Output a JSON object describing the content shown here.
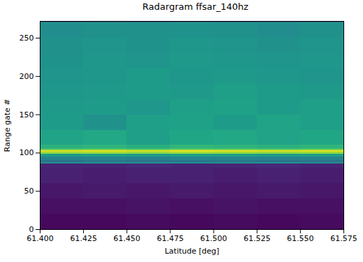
{
  "chart_data": {
    "type": "heatmap",
    "title": "Radargram ffsar_140hz",
    "x_label": "Latitude [deg]",
    "y_label": "Range gate #",
    "xlim": [
      61.4,
      61.575
    ],
    "ylim": [
      0,
      272
    ],
    "xticks": [
      {
        "value": 61.4,
        "label": "61.400"
      },
      {
        "value": 61.425,
        "label": "61.425"
      },
      {
        "value": 61.45,
        "label": "61.450"
      },
      {
        "value": 61.475,
        "label": "61.475"
      },
      {
        "value": 61.5,
        "label": "61.500"
      },
      {
        "value": 61.525,
        "label": "61.525"
      },
      {
        "value": 61.55,
        "label": "61.550"
      },
      {
        "value": 61.575,
        "label": "61.575"
      }
    ],
    "yticks": [
      0,
      50,
      100,
      150,
      200,
      250
    ],
    "color": "viridis",
    "clim": [
      0,
      1
    ],
    "x_edges": [
      61.4,
      61.425,
      61.45,
      61.475,
      61.5,
      61.525,
      61.55,
      61.575
    ],
    "y_edges": [
      0,
      20,
      40,
      60,
      80,
      86,
      88,
      90,
      95,
      99,
      101,
      103,
      105,
      110,
      130,
      150,
      170,
      190,
      210,
      230,
      250,
      268,
      270,
      272
    ],
    "values": [
      [
        0.02,
        0.02,
        0.03,
        0.02,
        0.03,
        0.02,
        0.03
      ],
      [
        0.04,
        0.04,
        0.05,
        0.04,
        0.05,
        0.04,
        0.04
      ],
      [
        0.06,
        0.07,
        0.06,
        0.07,
        0.06,
        0.07,
        0.06
      ],
      [
        0.09,
        0.08,
        0.09,
        0.09,
        0.08,
        0.09,
        0.08
      ],
      [
        0.1,
        0.1,
        0.11,
        0.1,
        0.1,
        0.11,
        0.1
      ],
      [
        0.5,
        0.52,
        0.5,
        0.51,
        0.5,
        0.52,
        0.5
      ],
      [
        0.38,
        0.4,
        0.38,
        0.39,
        0.4,
        0.38,
        0.39
      ],
      [
        0.44,
        0.45,
        0.44,
        0.46,
        0.45,
        0.44,
        0.45
      ],
      [
        0.55,
        0.56,
        0.55,
        0.57,
        0.56,
        0.55,
        0.56
      ],
      [
        0.85,
        0.86,
        0.84,
        0.86,
        0.85,
        0.84,
        0.85
      ],
      [
        0.95,
        0.96,
        0.94,
        0.97,
        0.96,
        0.95,
        0.96
      ],
      [
        0.78,
        0.8,
        0.77,
        0.8,
        0.79,
        0.78,
        0.8
      ],
      [
        0.64,
        0.65,
        0.63,
        0.66,
        0.65,
        0.64,
        0.65
      ],
      [
        0.58,
        0.6,
        0.56,
        0.59,
        0.6,
        0.58,
        0.59
      ],
      [
        0.55,
        0.5,
        0.56,
        0.57,
        0.55,
        0.58,
        0.56
      ],
      [
        0.54,
        0.55,
        0.53,
        0.56,
        0.57,
        0.55,
        0.56
      ],
      [
        0.53,
        0.54,
        0.55,
        0.54,
        0.56,
        0.55,
        0.54
      ],
      [
        0.52,
        0.53,
        0.55,
        0.53,
        0.54,
        0.53,
        0.52
      ],
      [
        0.51,
        0.53,
        0.52,
        0.54,
        0.53,
        0.52,
        0.53
      ],
      [
        0.5,
        0.52,
        0.51,
        0.53,
        0.52,
        0.5,
        0.52
      ],
      [
        0.49,
        0.5,
        0.5,
        0.51,
        0.5,
        0.49,
        0.5
      ],
      [
        0.52,
        0.53,
        0.52,
        0.53,
        0.52,
        0.52,
        0.53
      ],
      [
        0.3,
        0.32,
        0.3,
        0.31,
        0.3,
        0.31,
        0.3
      ]
    ]
  }
}
